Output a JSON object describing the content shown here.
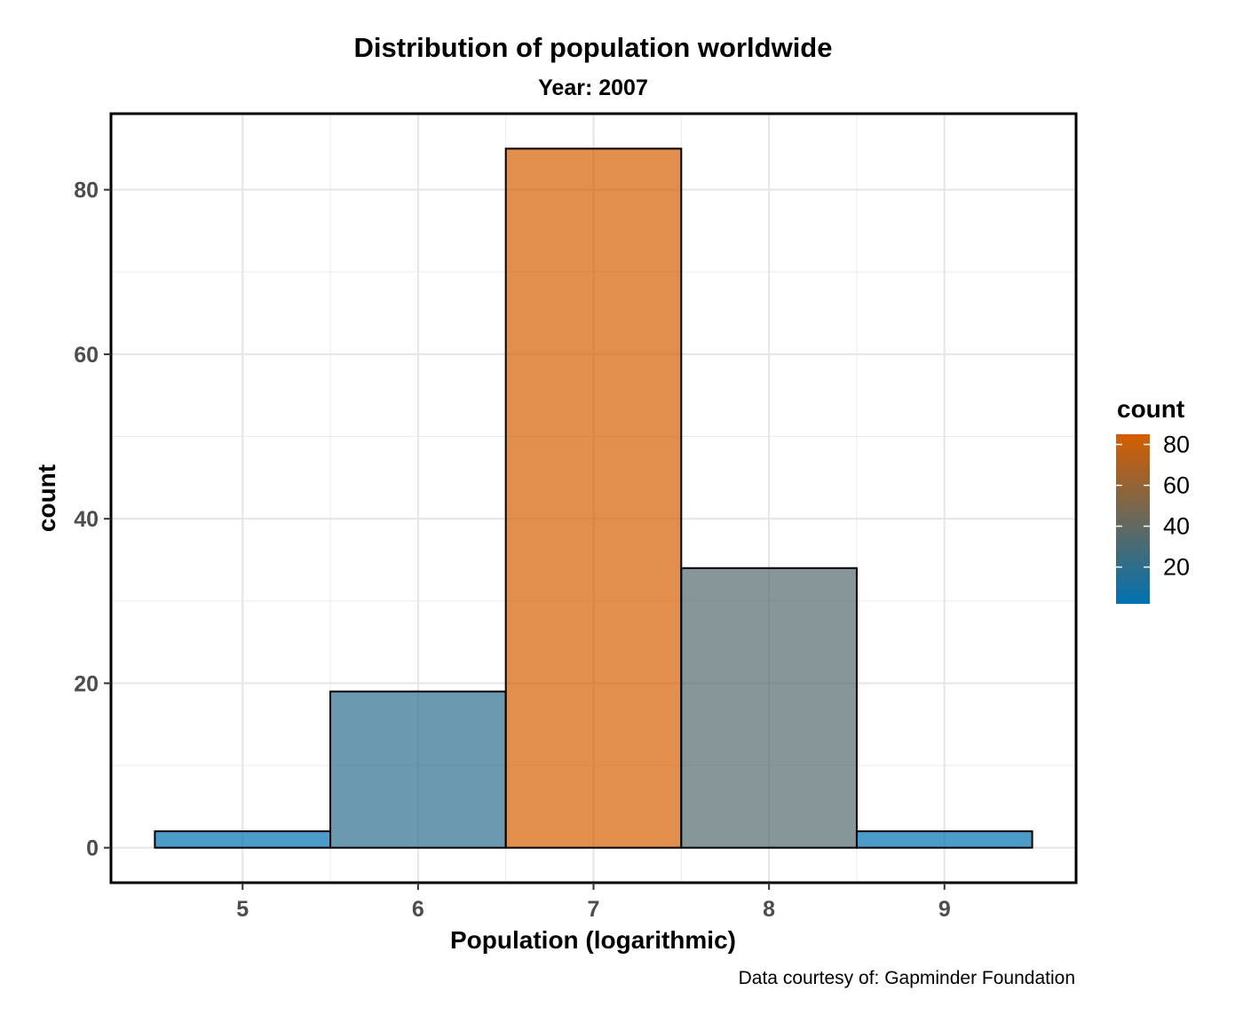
{
  "chart_data": {
    "type": "bar",
    "title": "Distribution of population worldwide",
    "subtitle": "Year: 2007",
    "xlabel": "Population (logarithmic)",
    "ylabel": "count",
    "caption": "Data courtesy of: Gapminder Foundation",
    "bins": [
      {
        "x_start": 4.5,
        "x_end": 5.5,
        "count": 2
      },
      {
        "x_start": 5.5,
        "x_end": 6.5,
        "count": 19
      },
      {
        "x_start": 6.5,
        "x_end": 7.5,
        "count": 85
      },
      {
        "x_start": 7.5,
        "x_end": 8.5,
        "count": 34
      },
      {
        "x_start": 8.5,
        "x_end": 9.5,
        "count": 2
      }
    ],
    "x_ticks": [
      5,
      6,
      7,
      8,
      9
    ],
    "y_ticks": [
      0,
      20,
      40,
      60,
      80
    ],
    "xlim": [
      4.25,
      9.75
    ],
    "ylim": [
      -4.25,
      89.25
    ],
    "grid": true,
    "legend": {
      "title": "count",
      "type": "gradient",
      "placement": "right",
      "low_color": "#0072B2",
      "high_color": "#D55E00",
      "range": [
        2,
        85
      ],
      "ticks": [
        20,
        40,
        60,
        80
      ]
    },
    "bar_opacity": 0.7,
    "bar_outline": "#000000"
  }
}
